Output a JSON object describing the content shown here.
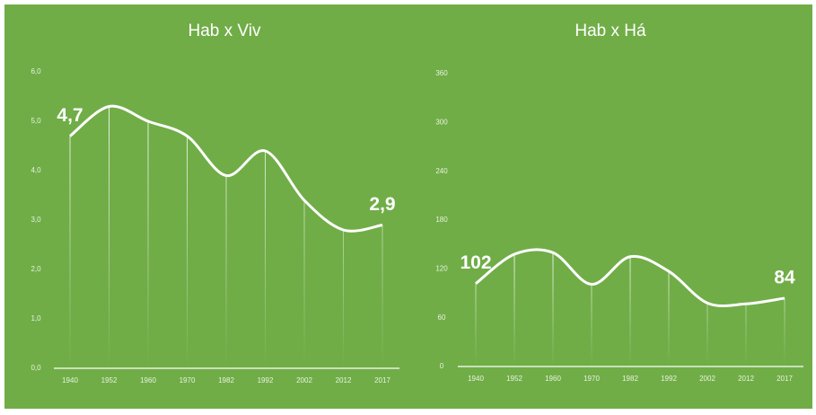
{
  "chart_data": [
    {
      "type": "line",
      "title": "Hab x Viv",
      "categories": [
        "1940",
        "1952",
        "1960",
        "1970",
        "1982",
        "1992",
        "2002",
        "2012",
        "2017"
      ],
      "values": [
        4.7,
        5.3,
        5.0,
        4.7,
        3.9,
        4.4,
        3.4,
        2.8,
        2.9
      ],
      "value_labels": [
        "4,7",
        null,
        null,
        null,
        null,
        null,
        null,
        null,
        "2,9"
      ],
      "color": "#ffffff",
      "ylim": [
        0,
        6
      ],
      "yticks": [
        {
          "value": 0,
          "label": "0,0"
        },
        {
          "value": 1,
          "label": "1,0"
        },
        {
          "value": 2,
          "label": "2,0"
        },
        {
          "value": 3,
          "label": "3,0"
        },
        {
          "value": 4,
          "label": "4,0"
        },
        {
          "value": 5,
          "label": "5,0"
        },
        {
          "value": 6,
          "label": "6,0"
        }
      ]
    },
    {
      "type": "line",
      "title": "Hab x Há",
      "categories": [
        "1940",
        "1952",
        "1960",
        "1970",
        "1982",
        "1992",
        "2002",
        "2012",
        "2017"
      ],
      "values": [
        102,
        138,
        140,
        101,
        135,
        117,
        78,
        77,
        84
      ],
      "value_labels": [
        "102",
        null,
        null,
        null,
        null,
        null,
        null,
        null,
        "84"
      ],
      "color": "#ffffff",
      "ylim": [
        0,
        360
      ],
      "yticks": [
        0,
        60,
        120,
        180,
        240,
        300,
        360
      ]
    }
  ]
}
